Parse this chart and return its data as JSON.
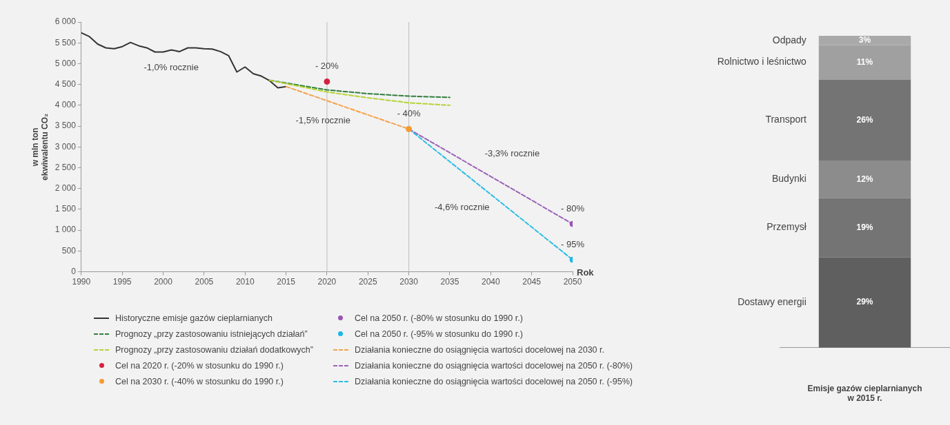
{
  "chart_data": [
    {
      "type": "line",
      "xlabel": "Rok",
      "ylabel": "w mln ton\nekwiwalentu CO₂",
      "xlim": [
        1990,
        2050
      ],
      "xticks": [
        1990,
        1995,
        2000,
        2005,
        2010,
        2015,
        2020,
        2025,
        2030,
        2035,
        2040,
        2045,
        2050
      ],
      "ylim": [
        0,
        6000
      ],
      "yticks": [
        0,
        500,
        {
          "value": 1000,
          "label": "1 000"
        },
        {
          "value": 1500,
          "label": "1 500"
        },
        {
          "value": 2000,
          "label": "2 000"
        },
        {
          "value": 2500,
          "label": "2 500"
        },
        {
          "value": 3000,
          "label": "3 000"
        },
        {
          "value": 3500,
          "label": "3 500"
        },
        {
          "value": 4000,
          "label": "4 000"
        },
        {
          "value": 4500,
          "label": "4 500"
        },
        {
          "value": 5000,
          "label": "5 000"
        },
        {
          "value": 5500,
          "label": "5 500"
        },
        {
          "value": 6000,
          "label": "6 000"
        }
      ],
      "grid": false,
      "legend": "bottom",
      "series": [
        {
          "name": "Historyczne emisje gazów cieplarnianych",
          "type": "line",
          "line_style": "solid",
          "marker": "none",
          "color": "#333333",
          "x": [
            1990,
            1991,
            1992,
            1993,
            1994,
            1995,
            1996,
            1997,
            1998,
            1999,
            2000,
            2001,
            2002,
            2003,
            2004,
            2005,
            2006,
            2007,
            2008,
            2009,
            2010,
            2011,
            2012,
            2013,
            2014,
            2015
          ],
          "values": [
            5740,
            5650,
            5470,
            5380,
            5360,
            5410,
            5510,
            5430,
            5380,
            5280,
            5280,
            5330,
            5290,
            5380,
            5380,
            5360,
            5350,
            5290,
            5190,
            4800,
            4920,
            4760,
            4700,
            4590,
            4420,
            4450
          ]
        },
        {
          "name": "Prognozy „przy zastosowaniu istniejących działań”",
          "type": "line",
          "line_style": "dashed",
          "marker": "none",
          "color": "#2f7d3c",
          "x": [
            2013,
            2020,
            2025,
            2030,
            2035
          ],
          "values": [
            4600,
            4370,
            4280,
            4220,
            4190
          ]
        },
        {
          "name": "Prognozy „przy zastosowaniu działań dodatkowych”",
          "type": "line",
          "line_style": "dashed",
          "marker": "none",
          "color": "#b5d334",
          "x": [
            2013,
            2020,
            2025,
            2030,
            2035
          ],
          "values": [
            4600,
            4320,
            4180,
            4060,
            4000
          ]
        },
        {
          "name": "Cel na 2020 r. (-20% w stosunku do 1990 r.)",
          "type": "scatter",
          "marker": "circle",
          "color": "#d4213d",
          "x": [
            2020
          ],
          "values": [
            4570
          ]
        },
        {
          "name": "Cel na 2030 r. (-40% w stosunku do 1990 r.)",
          "type": "scatter",
          "marker": "circle",
          "color": "#f39a32",
          "x": [
            2030
          ],
          "values": [
            3430
          ]
        },
        {
          "name": "Cel na 2050 r. (-80% w stosunku do 1990 r.)",
          "type": "scatter",
          "marker": "circle",
          "color": "#9a55b3",
          "x": [
            2050
          ],
          "values": [
            1150
          ]
        },
        {
          "name": "Cel na 2050 r. (-95% w stosunku do 1990 r.)",
          "type": "scatter",
          "marker": "circle",
          "color": "#1ab6e8",
          "x": [
            2050
          ],
          "values": [
            290
          ]
        },
        {
          "name": "Działania konieczne do osiągnięcia wartości docelowej na 2030 r.",
          "type": "line",
          "line_style": "dashed",
          "marker": "none",
          "color": "#f5a24a",
          "x": [
            2015,
            2030
          ],
          "values": [
            4450,
            3430
          ]
        },
        {
          "name": "Działania konieczne do osiągnięcia wartości docelowej na 2050 r. (-80%)",
          "type": "line",
          "line_style": "dashed",
          "marker": "none",
          "color": "#9a63b8",
          "x": [
            2030,
            2050
          ],
          "values": [
            3430,
            1150
          ]
        },
        {
          "name": "Działania konieczne do osiągnięcia wartości docelowej na 2050 r. (-95%)",
          "type": "line",
          "line_style": "dashed",
          "marker": "none",
          "color": "#2bbde4",
          "x": [
            2030,
            2050
          ],
          "values": [
            3430,
            290
          ]
        }
      ],
      "ref_lines": [
        {
          "axis": "x",
          "value": 2020,
          "color": "#bbbbbb"
        },
        {
          "axis": "x",
          "value": 2030,
          "color": "#bbbbbb"
        }
      ],
      "annotations": [
        "-1,0% rocznie",
        {
          "text": "- 20%",
          "x": 2020,
          "y": 4570
        },
        "-1,5% rocznie",
        {
          "text": "- 40%",
          "x": 2030,
          "y": 3430
        },
        "-3,3% rocznie",
        "-4,6% rocznie",
        {
          "text": "- 80%",
          "x": 2050,
          "y": 1150
        },
        {
          "text": "- 95%",
          "x": 2050,
          "y": 290
        }
      ]
    },
    {
      "type": "bar",
      "stacked": true,
      "categories": [
        null
      ],
      "xlabel": "Emisje gazów cieplarnianych\nw 2015 r.",
      "ylim": [
        0,
        100
      ],
      "series": [
        {
          "name": "Dostawy energii",
          "color": "#5f5f5f",
          "values": [
            29
          ],
          "value_labels": [
            "29%"
          ]
        },
        {
          "name": "Przemysł",
          "color": "#747474",
          "values": [
            19
          ],
          "value_labels": [
            "19%"
          ]
        },
        {
          "name": "Budynki",
          "color": "#8c8c8c",
          "values": [
            12
          ],
          "value_labels": [
            "12%"
          ]
        },
        {
          "name": "Transport",
          "color": "#747474",
          "values": [
            26
          ],
          "value_labels": [
            "26%"
          ]
        },
        {
          "name": "Rolnictwo i leśnictwo",
          "color": "#a0a0a0",
          "values": [
            11
          ],
          "value_labels": [
            "11%"
          ]
        },
        {
          "name": "Odpady",
          "color": "#a9a9a9",
          "values": [
            3
          ],
          "value_labels": [
            "3%"
          ]
        }
      ]
    }
  ]
}
